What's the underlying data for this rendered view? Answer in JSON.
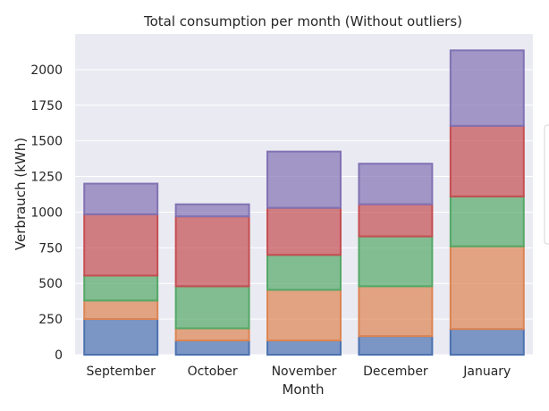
{
  "chart_data": {
    "type": "bar",
    "stacked": true,
    "title": "Total consumption per month (Without outliers)",
    "xlabel": "Month",
    "ylabel": "Verbrauch (kWh)",
    "categories": [
      "September",
      "October",
      "November",
      "December",
      "January"
    ],
    "ylim": [
      0,
      2250
    ],
    "yticks": [
      0,
      250,
      500,
      750,
      1000,
      1250,
      1500,
      1750,
      2000
    ],
    "grid": true,
    "legend": "right (partially visible, entries cut off)",
    "series": [
      {
        "values": [
          250,
          100,
          100,
          130,
          180
        ],
        "color": "#4c72b0"
      },
      {
        "values": [
          130,
          85,
          355,
          350,
          580
        ],
        "color": "#dd8452"
      },
      {
        "values": [
          175,
          295,
          245,
          350,
          350
        ],
        "color": "#55a868"
      },
      {
        "values": [
          430,
          490,
          330,
          225,
          495
        ],
        "color": "#c44e52"
      },
      {
        "values": [
          215,
          85,
          395,
          285,
          530
        ],
        "color": "#8172b3"
      }
    ]
  }
}
